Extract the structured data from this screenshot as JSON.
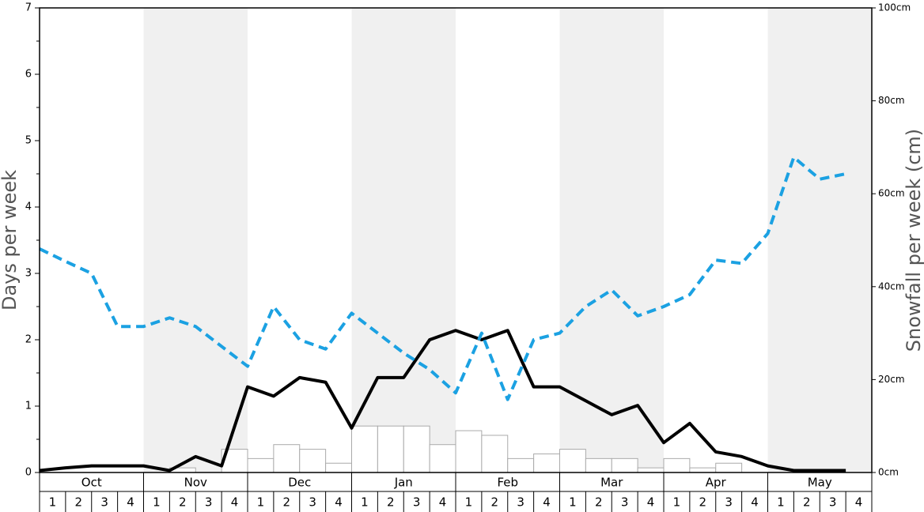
{
  "chart_data": {
    "type": "line",
    "y_label": "Days per week",
    "y2_label": "Snowfall per week (cm)",
    "months": [
      "Oct",
      "Nov",
      "Dec",
      "Jan",
      "Feb",
      "Mar",
      "Apr",
      "May"
    ],
    "categories": [
      "1",
      "2",
      "3",
      "4",
      "1",
      "2",
      "3",
      "4",
      "1",
      "2",
      "3",
      "4",
      "1",
      "2",
      "3",
      "4",
      "1",
      "2",
      "3",
      "4",
      "1",
      "2",
      "3",
      "4",
      "1",
      "2",
      "3",
      "4",
      "1",
      "2",
      "3",
      "4"
    ],
    "ylim": [
      0,
      7
    ],
    "yticks": [
      0,
      1,
      2,
      3,
      4,
      5,
      6,
      7
    ],
    "yminorticks": [
      0.5,
      1.5,
      2.5,
      3.5,
      4.5,
      5.5,
      6.5
    ],
    "y2lim": [
      0,
      100
    ],
    "y2ticks": [
      {
        "value": 0,
        "label": "0cm"
      },
      {
        "value": 20,
        "label": "20cm"
      },
      {
        "value": 40,
        "label": "40cm"
      },
      {
        "value": 60,
        "label": "60cm"
      },
      {
        "value": 80,
        "label": "80cm"
      },
      {
        "value": 100,
        "label": "100cm"
      }
    ],
    "bars": {
      "color": "#ffffff",
      "axis": "y2",
      "values": [
        0,
        0,
        0,
        0,
        0,
        1,
        0,
        5,
        3,
        6,
        5,
        2,
        10,
        10,
        10,
        6,
        9,
        8,
        3,
        4,
        5,
        3,
        3,
        1,
        3,
        1,
        2,
        0,
        0,
        0,
        0,
        0
      ]
    },
    "series": [
      {
        "color": "#000000",
        "dashed": false,
        "values": [
          0.03,
          0.07,
          0.1,
          0.1,
          0.1,
          0.03,
          0.24,
          0.1,
          1.29,
          1.15,
          1.43,
          1.36,
          0.67,
          1.43,
          1.43,
          2.0,
          2.14,
          2.0,
          2.14,
          1.29,
          1.29,
          1.08,
          0.87,
          1.01,
          0.45,
          0.74,
          0.31,
          0.24,
          0.1,
          0.03,
          0.03,
          0.03
        ]
      },
      {
        "color": "#1ba1e2",
        "dashed": true,
        "values": [
          3.37,
          3.18,
          3.0,
          2.2,
          2.2,
          2.33,
          2.2,
          1.9,
          1.6,
          2.5,
          2.0,
          1.86,
          2.4,
          2.1,
          1.8,
          1.55,
          1.2,
          2.1,
          1.1,
          2.0,
          2.1,
          2.5,
          2.75,
          2.36,
          2.5,
          2.68,
          3.2,
          3.15,
          3.6,
          4.75,
          4.42,
          4.5
        ]
      }
    ]
  }
}
